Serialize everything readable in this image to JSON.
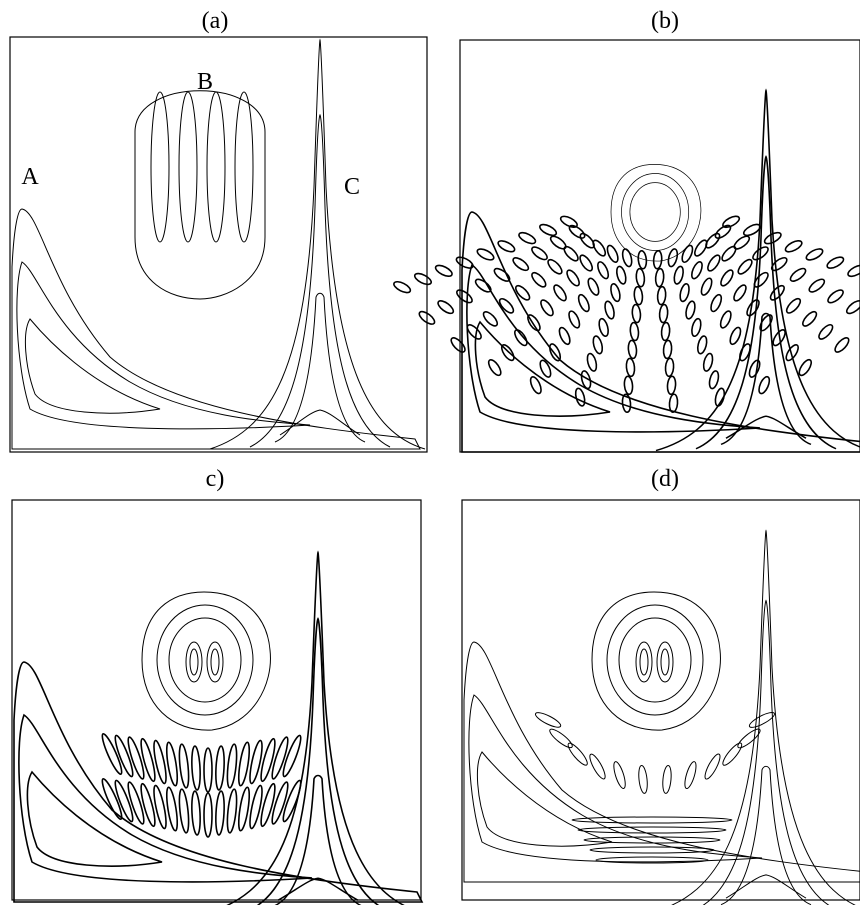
{
  "panels": [
    {
      "label": "(a)",
      "annotations": [
        "A",
        "B",
        "C"
      ]
    },
    {
      "label": "(b)"
    },
    {
      "label": "c)"
    },
    {
      "label": "(d)"
    }
  ]
}
